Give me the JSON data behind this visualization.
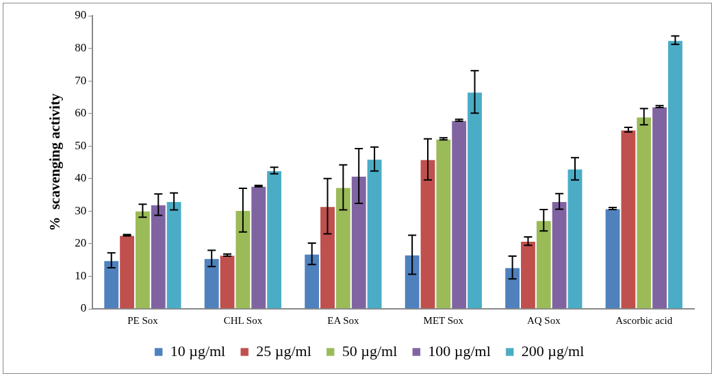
{
  "chart_data": {
    "type": "bar",
    "ylabel": "%  scavenging activity",
    "categories": [
      "PE Sox",
      "CHL Sox",
      "EA Sox",
      "MET Sox",
      "AQ Sox",
      "Ascorbic acid"
    ],
    "series": [
      {
        "name": "10 µg/ml",
        "color": "#4f81bd",
        "values": [
          14.9,
          15.5,
          16.9,
          16.6,
          12.7,
          30.8
        ],
        "errors": [
          2.3,
          2.5,
          3.3,
          6.0,
          3.5,
          0.3
        ]
      },
      {
        "name": "25 µg/ml",
        "color": "#c0504d",
        "values": [
          22.6,
          16.5,
          31.5,
          45.9,
          20.8,
          55.0
        ],
        "errors": [
          0.2,
          0.3,
          8.5,
          6.3,
          1.3,
          0.7
        ]
      },
      {
        "name": "50 µg/ml",
        "color": "#9bbb59",
        "values": [
          30.1,
          30.3,
          37.3,
          52.2,
          27.2,
          59.0
        ],
        "errors": [
          2.0,
          6.7,
          6.9,
          0.3,
          3.3,
          2.5
        ]
      },
      {
        "name": "100 µg/ml",
        "color": "#8064a2",
        "values": [
          32.0,
          37.7,
          40.8,
          57.9,
          33.0,
          62.1
        ],
        "errors": [
          3.3,
          0.2,
          8.4,
          0.3,
          2.4,
          0.3
        ]
      },
      {
        "name": "200 µg/ml",
        "color": "#4bacc6",
        "values": [
          33.0,
          42.5,
          46.0,
          66.6,
          43.0,
          82.5
        ],
        "errors": [
          2.6,
          1.0,
          3.7,
          6.5,
          3.4,
          1.3
        ]
      }
    ],
    "ylim": [
      0,
      90
    ],
    "yticks": [
      0,
      10,
      20,
      30,
      40,
      50,
      60,
      70,
      80,
      90
    ],
    "grid": false,
    "legend": "bottom"
  }
}
